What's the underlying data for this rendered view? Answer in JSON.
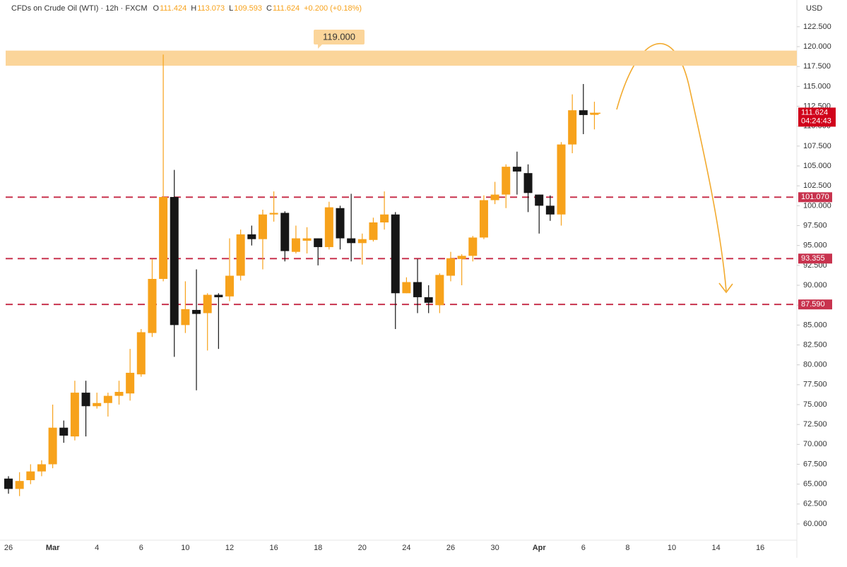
{
  "chart_data": {
    "type": "candlestick",
    "header": {
      "symbol": "CFDs on Crude Oil (WTI) · 12h · FXCM",
      "items": [
        {
          "label": "O",
          "value": "111.424"
        },
        {
          "label": "H",
          "value": "113.073"
        },
        {
          "label": "L",
          "value": "109.593"
        },
        {
          "label": "C",
          "value": "111.624"
        }
      ],
      "change": "+0.200 (+0.18%)"
    },
    "currency": "USD",
    "up_color": "#f7a21b",
    "down_color": "#161616",
    "categories": [
      "26",
      null,
      null,
      null,
      "Mar",
      null,
      null,
      null,
      "4",
      null,
      null,
      null,
      "6",
      null,
      null,
      null,
      "10",
      null,
      null,
      null,
      "12",
      null,
      null,
      null,
      "16",
      null,
      null,
      null,
      "18",
      null,
      null,
      null,
      "20",
      null,
      null,
      null,
      "24",
      null,
      null,
      null,
      "26",
      null,
      null,
      null,
      "30",
      null,
      null,
      null,
      "Apr",
      null,
      null,
      null,
      "6",
      null,
      null,
      null,
      "8",
      null,
      null,
      null,
      "10",
      null,
      null,
      null,
      "14",
      null,
      null,
      null,
      "16"
    ],
    "open": [
      65.7,
      64.4,
      65.5,
      66.6,
      67.5,
      72.1,
      71,
      76.5,
      74.8,
      75.2,
      76.1,
      76.4,
      78.8,
      84,
      90.8,
      101.1,
      85,
      86.9,
      86.5,
      88.8,
      88.6,
      91.2,
      96.4,
      95.8,
      98.9,
      99.1,
      94.2,
      95.6,
      95.9,
      94.8,
      99.7,
      95.9,
      95.3,
      95.7,
      97.9,
      98.9,
      89,
      90.4,
      88.5,
      87.5,
      91.2,
      93.3,
      93.7,
      96,
      100.7,
      101.4,
      104.9,
      104.1,
      101.4,
      100,
      98.9,
      107.7,
      112,
      111.424,
      null,
      null,
      null,
      null,
      null,
      null,
      null,
      null,
      null,
      null,
      null,
      null,
      null,
      null,
      null
    ],
    "high": [
      66,
      66.5,
      67.5,
      68,
      75,
      73,
      78,
      78,
      76.5,
      76.5,
      78,
      82,
      84.5,
      93.3,
      119,
      104.5,
      90.5,
      92,
      89,
      89,
      95.9,
      97,
      97.5,
      99.5,
      101.8,
      99.3,
      97.5,
      97.3,
      95.9,
      100.5,
      100,
      101.5,
      96.5,
      98.5,
      101.8,
      99.2,
      91,
      93.3,
      90,
      91.5,
      94.2,
      93.9,
      96.2,
      101.3,
      103,
      105.2,
      106.8,
      105.2,
      101.4,
      101.3,
      108,
      114,
      115.3,
      113.073,
      null,
      null,
      null,
      null,
      null,
      null,
      null,
      null,
      null,
      null,
      null,
      null,
      null,
      null,
      null
    ],
    "low": [
      63.8,
      63.5,
      65,
      66,
      67,
      70.2,
      70.5,
      71,
      74.5,
      73.5,
      75,
      75.5,
      78.5,
      83.5,
      90.5,
      81,
      84,
      76.8,
      81.8,
      82,
      88,
      90.6,
      95,
      92,
      98,
      93,
      94,
      94,
      92.5,
      94.5,
      94.5,
      93,
      92.6,
      95.5,
      97,
      84.5,
      89,
      86.5,
      86.5,
      86.5,
      90.5,
      90,
      93,
      95.8,
      100.2,
      99.7,
      101.4,
      99.2,
      96.5,
      98.1,
      97.5,
      106.6,
      109,
      109.593,
      null,
      null,
      null,
      null,
      null,
      null,
      null,
      null,
      null,
      null,
      null,
      null,
      null,
      null,
      null
    ],
    "close": [
      64.4,
      65.4,
      66.6,
      67.5,
      72.1,
      71.1,
      76.5,
      74.8,
      75.2,
      76.1,
      76.6,
      79,
      84.1,
      90.8,
      101.1,
      85,
      87,
      86.4,
      88.8,
      88.5,
      91.2,
      96.4,
      95.8,
      98.9,
      99.1,
      94.3,
      95.9,
      95.9,
      94.8,
      99.8,
      95.9,
      95.3,
      95.8,
      97.9,
      98.9,
      89,
      90.4,
      88.5,
      87.8,
      91.3,
      93.4,
      93.7,
      96,
      100.7,
      101.4,
      104.9,
      104.3,
      101.6,
      100,
      98.9,
      107.7,
      112,
      111.4,
      111.624,
      null,
      null,
      null,
      null,
      null,
      null,
      null,
      null,
      null,
      null,
      null,
      null,
      null,
      null,
      null
    ],
    "ylim": [
      55.74,
      125.86
    ],
    "yticks": [
      {
        "value": 60,
        "label": "60.000"
      },
      {
        "value": 62.5,
        "label": "62.500"
      },
      {
        "value": 65,
        "label": "65.000"
      },
      {
        "value": 67.5,
        "label": "67.500"
      },
      {
        "value": 70,
        "label": "70.000"
      },
      {
        "value": 72.5,
        "label": "72.500"
      },
      {
        "value": 75,
        "label": "75.000"
      },
      {
        "value": 77.5,
        "label": "77.500"
      },
      {
        "value": 80,
        "label": "80.000"
      },
      {
        "value": 82.5,
        "label": "82.500"
      },
      {
        "value": 85,
        "label": "85.000"
      },
      {
        "value": 87.5,
        "label": "87.500"
      },
      {
        "value": 90,
        "label": "90.000"
      },
      {
        "value": 92.5,
        "label": "92.500"
      },
      {
        "value": 95,
        "label": "95.000"
      },
      {
        "value": 97.5,
        "label": "97.500"
      },
      {
        "value": 100,
        "label": "100.000"
      },
      {
        "value": 102.5,
        "label": "102.500"
      },
      {
        "value": 105,
        "label": "105.000"
      },
      {
        "value": 107.5,
        "label": "107.500"
      },
      {
        "value": 110,
        "label": "110.000"
      },
      {
        "value": 112.5,
        "label": "112.500"
      },
      {
        "value": 115,
        "label": "115.000"
      },
      {
        "value": 117.5,
        "label": "117.500"
      },
      {
        "value": 120,
        "label": "120.000"
      },
      {
        "value": 122.5,
        "label": "122.500"
      }
    ],
    "zone": {
      "ylim": [
        117.6,
        119.5
      ],
      "label": "119.000",
      "color": "#fbd59a"
    },
    "levels": [
      {
        "value": 101.07,
        "label": "101.070"
      },
      {
        "value": 93.355,
        "label": "93.355"
      },
      {
        "value": 87.59,
        "label": "87.590"
      }
    ],
    "level_color": "#c8334e",
    "current_price": {
      "value": 111.624,
      "label": "111.624",
      "countdown": "04:24:43",
      "color": "#d0021b"
    }
  }
}
